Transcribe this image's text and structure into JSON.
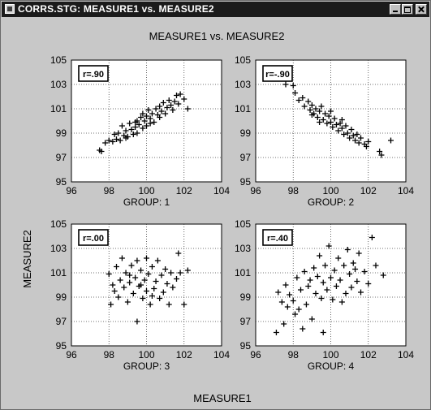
{
  "window": {
    "title": "CORRS.STG: MEASURE1 vs. MEASURE2",
    "icon": "statistica-doc-icon",
    "controls": [
      "minimize-icon",
      "maximize-icon",
      "close-icon"
    ]
  },
  "colors": {
    "background": "#c8c8c8",
    "plot_area": "#ffffff",
    "marker": "#000000",
    "title_bar": "#1b1b1b"
  },
  "chart_data": {
    "type": "scatter",
    "title": "MEASURE1 vs. MEASURE2",
    "xlabel": "MEASURE1",
    "ylabel": "MEASURE2",
    "xlim": [
      96,
      104
    ],
    "ylim": [
      95,
      105
    ],
    "xticks": [
      "96",
      "98",
      "100",
      "102",
      "104"
    ],
    "yticks": [
      "95",
      "97",
      "99",
      "101",
      "103",
      "105"
    ],
    "grid": true,
    "marker": "+",
    "panels": [
      {
        "label": "GROUP: 1",
        "annotation": "r=.90",
        "points": [
          [
            97.5,
            97.6
          ],
          [
            97.6,
            97.5
          ],
          [
            97.8,
            98.2
          ],
          [
            98.0,
            98.4
          ],
          [
            98.2,
            98.3
          ],
          [
            98.3,
            98.9
          ],
          [
            98.4,
            98.5
          ],
          [
            98.5,
            99.0
          ],
          [
            98.6,
            98.4
          ],
          [
            98.7,
            99.6
          ],
          [
            98.8,
            98.8
          ],
          [
            98.9,
            99.2
          ],
          [
            99.0,
            98.7
          ],
          [
            99.1,
            99.8
          ],
          [
            99.2,
            99.3
          ],
          [
            99.3,
            98.9
          ],
          [
            99.4,
            99.5
          ],
          [
            99.5,
            100.0
          ],
          [
            99.5,
            99.0
          ],
          [
            99.6,
            99.7
          ],
          [
            99.7,
            100.3
          ],
          [
            99.8,
            99.4
          ],
          [
            99.8,
            100.6
          ],
          [
            99.9,
            100.0
          ],
          [
            100.0,
            100.4
          ],
          [
            100.0,
            99.6
          ],
          [
            100.1,
            100.9
          ],
          [
            100.2,
            100.2
          ],
          [
            100.3,
            100.6
          ],
          [
            100.4,
            99.9
          ],
          [
            100.5,
            101.0
          ],
          [
            100.6,
            100.5
          ],
          [
            100.7,
            101.2
          ],
          [
            100.8,
            100.8
          ],
          [
            100.9,
            101.5
          ],
          [
            101.0,
            100.6
          ],
          [
            101.1,
            101.1
          ],
          [
            101.2,
            101.7
          ],
          [
            101.3,
            101.3
          ],
          [
            101.4,
            100.9
          ],
          [
            101.5,
            101.6
          ],
          [
            101.6,
            102.1
          ],
          [
            101.7,
            101.4
          ],
          [
            101.8,
            102.2
          ],
          [
            102.0,
            101.8
          ],
          [
            102.2,
            101.0
          ],
          [
            99.4,
            99.9
          ],
          [
            100.2,
            99.8
          ],
          [
            98.9,
            98.6
          ],
          [
            100.7,
            100.3
          ]
        ]
      },
      {
        "label": "GROUP: 2",
        "annotation": "r=-.90",
        "points": [
          [
            97.6,
            103.0
          ],
          [
            98.0,
            102.9
          ],
          [
            98.1,
            102.3
          ],
          [
            98.3,
            101.7
          ],
          [
            98.5,
            101.9
          ],
          [
            98.6,
            101.2
          ],
          [
            98.8,
            101.6
          ],
          [
            98.9,
            100.9
          ],
          [
            99.0,
            101.3
          ],
          [
            99.1,
            100.6
          ],
          [
            99.2,
            101.0
          ],
          [
            99.3,
            100.3
          ],
          [
            99.4,
            100.8
          ],
          [
            99.5,
            101.2
          ],
          [
            99.6,
            100.1
          ],
          [
            99.7,
            100.6
          ],
          [
            99.8,
            99.8
          ],
          [
            99.9,
            100.4
          ],
          [
            100.0,
            99.9
          ],
          [
            100.0,
            100.8
          ],
          [
            100.1,
            99.5
          ],
          [
            100.2,
            100.2
          ],
          [
            100.3,
            99.7
          ],
          [
            100.4,
            99.2
          ],
          [
            100.5,
            99.8
          ],
          [
            100.6,
            99.4
          ],
          [
            100.7,
            98.9
          ],
          [
            100.8,
            99.6
          ],
          [
            100.9,
            99.0
          ],
          [
            101.0,
            98.6
          ],
          [
            101.1,
            99.3
          ],
          [
            101.2,
            98.8
          ],
          [
            101.3,
            98.4
          ],
          [
            101.4,
            98.9
          ],
          [
            101.5,
            98.2
          ],
          [
            101.6,
            98.6
          ],
          [
            101.8,
            98.1
          ],
          [
            102.0,
            98.3
          ],
          [
            102.6,
            97.5
          ],
          [
            102.7,
            97.2
          ],
          [
            103.2,
            98.4
          ],
          [
            99.4,
            99.9
          ],
          [
            100.6,
            100.1
          ],
          [
            99.0,
            100.5
          ],
          [
            101.9,
            97.9
          ]
        ]
      },
      {
        "label": "GROUP: 3",
        "annotation": "r=.00",
        "points": [
          [
            98.0,
            100.9
          ],
          [
            98.1,
            98.4
          ],
          [
            98.2,
            100.0
          ],
          [
            98.3,
            99.5
          ],
          [
            98.4,
            101.5
          ],
          [
            98.5,
            99.0
          ],
          [
            98.6,
            100.4
          ],
          [
            98.7,
            102.2
          ],
          [
            98.8,
            99.8
          ],
          [
            98.9,
            101.0
          ],
          [
            99.0,
            98.6
          ],
          [
            99.1,
            100.2
          ],
          [
            99.2,
            101.6
          ],
          [
            99.3,
            99.3
          ],
          [
            99.4,
            100.6
          ],
          [
            99.5,
            102.0
          ],
          [
            99.5,
            97.0
          ],
          [
            99.6,
            99.9
          ],
          [
            99.7,
            101.2
          ],
          [
            99.8,
            98.9
          ],
          [
            99.9,
            100.4
          ],
          [
            100.0,
            102.2
          ],
          [
            100.0,
            99.5
          ],
          [
            100.1,
            100.9
          ],
          [
            100.2,
            98.4
          ],
          [
            100.3,
            101.5
          ],
          [
            100.4,
            99.7
          ],
          [
            100.5,
            100.3
          ],
          [
            100.6,
            102.0
          ],
          [
            100.7,
            98.9
          ],
          [
            100.8,
            100.8
          ],
          [
            100.9,
            99.4
          ],
          [
            101.0,
            101.3
          ],
          [
            101.1,
            100.1
          ],
          [
            101.2,
            98.4
          ],
          [
            101.3,
            101.0
          ],
          [
            101.4,
            99.8
          ],
          [
            101.6,
            100.5
          ],
          [
            101.7,
            102.6
          ],
          [
            101.8,
            101.0
          ],
          [
            102.0,
            98.4
          ],
          [
            102.2,
            101.2
          ],
          [
            99.1,
            100.8
          ],
          [
            100.3,
            99.1
          ],
          [
            99.7,
            100.0
          ]
        ]
      },
      {
        "label": "GROUP: 4",
        "annotation": "r=.40",
        "points": [
          [
            97.1,
            96.1
          ],
          [
            97.2,
            99.4
          ],
          [
            97.4,
            98.6
          ],
          [
            97.5,
            96.8
          ],
          [
            97.6,
            100.0
          ],
          [
            97.7,
            98.2
          ],
          [
            97.8,
            99.2
          ],
          [
            98.0,
            98.7
          ],
          [
            98.1,
            97.6
          ],
          [
            98.2,
            100.6
          ],
          [
            98.4,
            99.6
          ],
          [
            98.5,
            96.4
          ],
          [
            98.6,
            101.1
          ],
          [
            98.7,
            98.4
          ],
          [
            98.8,
            99.9
          ],
          [
            98.9,
            100.4
          ],
          [
            99.0,
            97.2
          ],
          [
            99.1,
            101.4
          ],
          [
            99.2,
            99.3
          ],
          [
            99.3,
            100.7
          ],
          [
            99.4,
            102.4
          ],
          [
            99.5,
            98.9
          ],
          [
            99.6,
            100.2
          ],
          [
            99.6,
            96.1
          ],
          [
            99.7,
            101.6
          ],
          [
            99.8,
            99.6
          ],
          [
            99.9,
            103.2
          ],
          [
            100.0,
            100.6
          ],
          [
            100.1,
            98.8
          ],
          [
            100.2,
            101.2
          ],
          [
            100.3,
            99.9
          ],
          [
            100.4,
            102.2
          ],
          [
            100.5,
            100.4
          ],
          [
            100.6,
            98.6
          ],
          [
            100.7,
            101.6
          ],
          [
            100.8,
            99.3
          ],
          [
            100.9,
            102.9
          ],
          [
            101.0,
            100.9
          ],
          [
            101.1,
            99.8
          ],
          [
            101.2,
            101.8
          ],
          [
            101.4,
            100.3
          ],
          [
            101.5,
            102.6
          ],
          [
            101.6,
            99.4
          ],
          [
            101.8,
            101.1
          ],
          [
            102.0,
            100.1
          ],
          [
            102.2,
            103.9
          ],
          [
            102.4,
            101.6
          ],
          [
            102.8,
            100.8
          ],
          [
            98.3,
            98.0
          ],
          [
            101.3,
            101.3
          ]
        ]
      }
    ]
  }
}
